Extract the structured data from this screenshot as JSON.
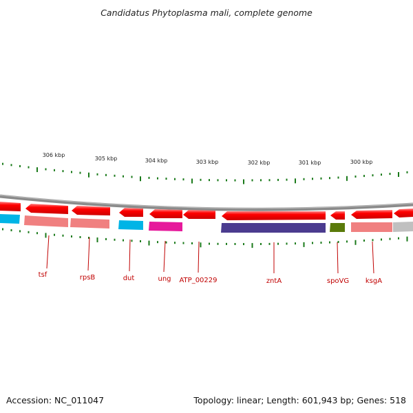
{
  "title": "Candidatus Phytoplasma mali, complete genome",
  "footer": {
    "accession": "Accession: NC_011047",
    "topology": "Topology: linear; Length: 601,943 bp; Genes: 518"
  },
  "scale_labels": [
    "306 kbp",
    "305 kbp",
    "304 kbp",
    "303 kbp",
    "302 kbp",
    "301 kbp",
    "300 kbp"
  ],
  "gene_labels": [
    "tsf",
    "rpsB",
    "dut",
    "ung",
    "ATP_00229",
    "zntA",
    "spoVG",
    "ksgA"
  ],
  "colors": {
    "cds": "#ff0000",
    "backbone": "#8a8a8a",
    "tick": "#1a7a1a",
    "label": "#c00000",
    "cog_cyan": "#00b4e6",
    "cog_salmon": "#f08080",
    "cog_magenta": "#e6199b",
    "cog_indigo": "#4b3b8f",
    "cog_olive": "#5a7a0a",
    "cog_gray": "#c0c0c0"
  }
}
